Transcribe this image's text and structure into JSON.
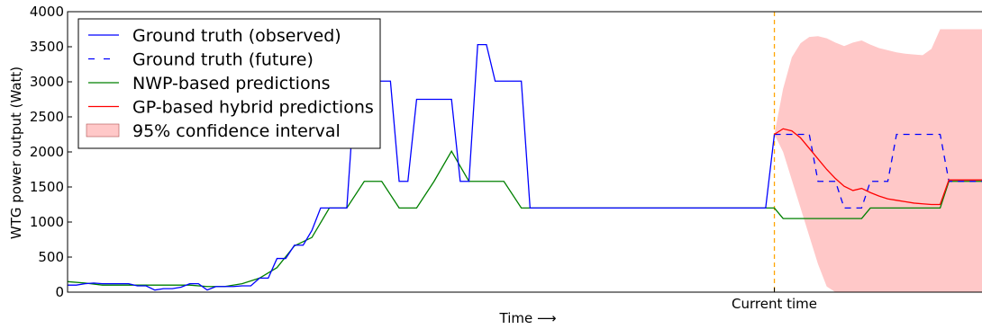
{
  "chart_data": {
    "type": "line",
    "xlabel": "Time ⟶",
    "ylabel": "WTG power output (Watt)",
    "ylim": [
      0,
      4000
    ],
    "yticks": [
      0,
      500,
      1000,
      1500,
      2000,
      2500,
      3000,
      3500,
      4000
    ],
    "xlim": [
      0,
      105
    ],
    "xticks": [
      {
        "x": 81,
        "label": "Current time"
      }
    ],
    "current_time": 81,
    "grid": false,
    "legend_position": "top-left",
    "series": [
      {
        "name": "Ground truth (observed)",
        "color": "#0000ff",
        "style": "solid",
        "x": [
          0,
          1,
          2,
          3,
          4,
          5,
          6,
          7,
          8,
          9,
          10,
          11,
          12,
          13,
          14,
          15,
          16,
          17,
          18,
          19,
          20,
          21,
          22,
          23,
          24,
          25,
          26,
          27,
          28,
          29,
          30,
          31,
          32,
          33,
          34,
          35,
          36,
          37,
          38,
          39,
          40,
          41,
          42,
          43,
          44,
          45,
          46,
          47,
          48,
          49,
          50,
          51,
          52,
          53,
          54,
          55,
          56,
          57,
          58,
          59,
          60,
          61,
          62,
          63,
          64,
          65,
          66,
          67,
          68,
          69,
          70,
          71,
          72,
          73,
          74,
          75,
          76,
          77,
          78,
          79,
          80,
          81
        ],
        "y": [
          100,
          100,
          120,
          130,
          120,
          120,
          120,
          120,
          90,
          90,
          30,
          50,
          50,
          70,
          120,
          120,
          30,
          80,
          80,
          80,
          90,
          90,
          200,
          200,
          480,
          480,
          670,
          670,
          880,
          1200,
          1200,
          1200,
          1200,
          3010,
          3010,
          3010,
          3010,
          3010,
          1580,
          1580,
          2750,
          2750,
          2750,
          2750,
          2750,
          1580,
          1580,
          3530,
          3530,
          3010,
          3010,
          3010,
          3010,
          1200,
          1200,
          1200,
          1200,
          1200,
          1200,
          1200,
          1200,
          1200,
          1200,
          1200,
          1200,
          1200,
          1200,
          1200,
          1200,
          1200,
          1200,
          1200,
          1200,
          1200,
          1200,
          1200,
          1200,
          1200,
          1200,
          1200,
          1200,
          2250
        ]
      },
      {
        "name": "Ground truth (future)",
        "color": "#0000ff",
        "style": "dashed",
        "x": [
          81,
          82,
          83,
          84,
          85,
          86,
          87,
          88,
          89,
          90,
          91,
          92,
          93,
          94,
          95,
          96,
          97,
          98,
          99,
          100,
          101,
          102,
          103,
          104,
          105
        ],
        "y": [
          2250,
          2250,
          2250,
          2250,
          2250,
          1580,
          1580,
          1580,
          1200,
          1200,
          1200,
          1580,
          1580,
          1580,
          2250,
          2250,
          2250,
          2250,
          2250,
          2250,
          1580,
          1580,
          1580,
          1580,
          1580
        ]
      },
      {
        "name": "NWP-based predictions",
        "color": "#008000",
        "style": "solid",
        "x": [
          0,
          2,
          4,
          6,
          8,
          10,
          12,
          14,
          16,
          18,
          20,
          22,
          24,
          26,
          28,
          30,
          32,
          34,
          36,
          38,
          40,
          42,
          44,
          46,
          48,
          50,
          52,
          54,
          56,
          58,
          60,
          62,
          64,
          66,
          68,
          70,
          72,
          74,
          76,
          78,
          80,
          81,
          82,
          83,
          84,
          85,
          86,
          87,
          88,
          89,
          90,
          91,
          92,
          93,
          94,
          95,
          96,
          97,
          98,
          99,
          100,
          101,
          102,
          103,
          104,
          105
        ],
        "y": [
          150,
          130,
          100,
          100,
          100,
          100,
          100,
          100,
          80,
          80,
          120,
          200,
          350,
          660,
          780,
          1200,
          1200,
          1580,
          1580,
          1200,
          1200,
          1580,
          2010,
          1580,
          1580,
          1580,
          1200,
          1200,
          1200,
          1200,
          1200,
          1200,
          1200,
          1200,
          1200,
          1200,
          1200,
          1200,
          1200,
          1200,
          1200,
          1200,
          1050,
          1050,
          1050,
          1050,
          1050,
          1050,
          1050,
          1050,
          1050,
          1050,
          1200,
          1200,
          1200,
          1200,
          1200,
          1200,
          1200,
          1200,
          1200,
          1580,
          1580,
          1580,
          1580,
          1580
        ]
      },
      {
        "name": "GP-based hybrid predictions",
        "color": "#ff0000",
        "style": "solid",
        "x": [
          81,
          82,
          83,
          84,
          85,
          86,
          87,
          88,
          89,
          90,
          91,
          92,
          93,
          94,
          95,
          96,
          97,
          98,
          99,
          100,
          101,
          102,
          103,
          104,
          105
        ],
        "y": [
          2250,
          2330,
          2300,
          2200,
          2050,
          1900,
          1750,
          1620,
          1510,
          1450,
          1480,
          1420,
          1370,
          1330,
          1310,
          1290,
          1270,
          1260,
          1250,
          1250,
          1600,
          1600,
          1600,
          1600,
          1600
        ]
      }
    ],
    "confidence_interval": {
      "name": "95% confidence interval",
      "color": "#ffc8c8",
      "x": [
        81,
        82,
        83,
        84,
        85,
        86,
        87,
        88,
        89,
        90,
        91,
        92,
        93,
        94,
        95,
        96,
        97,
        98,
        99,
        100,
        101,
        102,
        103,
        104,
        105
      ],
      "upper": [
        2250,
        2900,
        3350,
        3550,
        3640,
        3650,
        3620,
        3560,
        3510,
        3560,
        3590,
        3530,
        3480,
        3450,
        3420,
        3400,
        3390,
        3380,
        3470,
        3750,
        3750,
        3750,
        3750,
        3750,
        3750
      ],
      "lower": [
        2250,
        2000,
        1600,
        1200,
        800,
        400,
        80,
        0,
        0,
        0,
        0,
        0,
        0,
        0,
        0,
        0,
        0,
        0,
        0,
        0,
        0,
        0,
        0,
        0,
        0
      ]
    }
  }
}
